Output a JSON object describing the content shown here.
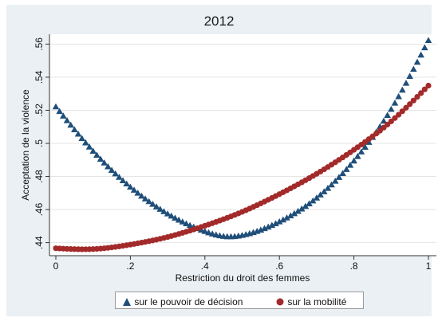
{
  "chart_data": {
    "type": "scatter",
    "title": "2012",
    "xlabel": "Restriction du droit des femmes",
    "ylabel": "Acceptation de la violence",
    "xlim": [
      0,
      1
    ],
    "ylim": [
      0.435,
      0.565
    ],
    "xticks": [
      0,
      0.2,
      0.4,
      0.6,
      0.8,
      1
    ],
    "xtick_labels": [
      "0",
      ".2",
      ".4",
      ".6",
      ".8",
      "1"
    ],
    "yticks": [
      0.44,
      0.46,
      0.48,
      0.5,
      0.52,
      0.54,
      0.56
    ],
    "ytick_labels": [
      ".44",
      ".46",
      ".48",
      ".5",
      ".52",
      ".54",
      ".56"
    ],
    "grid": true,
    "legend_position": "bottom",
    "series": [
      {
        "name": "sur le pouvoir de décision",
        "marker": "triangle",
        "color": "#1f4e79",
        "x": [
          0,
          0.1,
          0.2,
          0.3,
          0.4,
          0.46,
          0.5,
          0.6,
          0.7,
          0.8,
          0.9,
          1
        ],
        "y": [
          0.522,
          0.4952,
          0.4735,
          0.4573,
          0.4467,
          0.4435,
          0.4443,
          0.4525,
          0.4669,
          0.4893,
          0.5205,
          0.5621
        ]
      },
      {
        "name": "sur la mobilité",
        "marker": "circle",
        "color": "#a32a2a",
        "x": [
          0,
          0.1,
          0.2,
          0.3,
          0.4,
          0.5,
          0.6,
          0.7,
          0.8,
          0.9,
          1
        ],
        "y": [
          0.4366,
          0.4361,
          0.4388,
          0.4434,
          0.4502,
          0.4586,
          0.4693,
          0.4816,
          0.4961,
          0.5133,
          0.5349
        ]
      }
    ]
  }
}
